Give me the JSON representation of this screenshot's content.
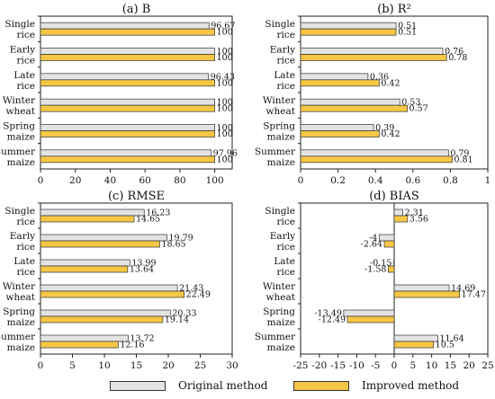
{
  "colors": {
    "original": "#e3e3e3",
    "improved": "#f6c744",
    "stroke": "#333333"
  },
  "legend": {
    "original": "Original method",
    "improved": "Improved method"
  },
  "chart_data": [
    {
      "type": "bar",
      "title": "(a) B",
      "categories": [
        [
          "Single",
          "rice"
        ],
        [
          "Early",
          "rice"
        ],
        [
          "Late",
          "rice"
        ],
        [
          "Winter",
          "wheat"
        ],
        [
          "Spring",
          "maize"
        ],
        [
          "Summer",
          "maize"
        ]
      ],
      "series": [
        {
          "name": "Original method",
          "values": [
            96.67,
            100,
            96.43,
            100,
            100,
            97.96
          ],
          "labels": [
            "96.67",
            "100",
            "96.43",
            "100",
            "100",
            "97.96"
          ]
        },
        {
          "name": "Improved method",
          "values": [
            100,
            100,
            100,
            100,
            100,
            100
          ],
          "labels": [
            "100",
            "100",
            "100",
            "100",
            "100",
            "100"
          ]
        }
      ],
      "xlim": [
        0,
        110
      ],
      "xticks": [
        0,
        20,
        40,
        60,
        80,
        100
      ],
      "grid": false
    },
    {
      "type": "bar",
      "title": "(b) R²",
      "categories": [
        [
          "Single",
          "rice"
        ],
        [
          "Early",
          "rice"
        ],
        [
          "Late",
          "rice"
        ],
        [
          "Winter",
          "wheat"
        ],
        [
          "Spring",
          "maize"
        ],
        [
          "Summer",
          "maize"
        ]
      ],
      "series": [
        {
          "name": "Original method",
          "values": [
            0.51,
            0.76,
            0.36,
            0.53,
            0.39,
            0.79
          ],
          "labels": [
            "0.51",
            "0.76",
            "0.36",
            "0.53",
            "0.39",
            "0.79"
          ]
        },
        {
          "name": "Improved method",
          "values": [
            0.51,
            0.78,
            0.42,
            0.57,
            0.42,
            0.81
          ],
          "labels": [
            "0.51",
            "0.78",
            "0.42",
            "0.57",
            "0.42",
            "0.81"
          ]
        }
      ],
      "xlim": [
        0,
        1
      ],
      "xticks": [
        0,
        0.2,
        0.4,
        0.6,
        0.8,
        1
      ],
      "grid": false
    },
    {
      "type": "bar",
      "title": "(c) RMSE",
      "categories": [
        [
          "Single",
          "rice"
        ],
        [
          "Early",
          "rice"
        ],
        [
          "Late",
          "rice"
        ],
        [
          "Winter",
          "wheat"
        ],
        [
          "Spring",
          "maize"
        ],
        [
          "Summer",
          "maize"
        ]
      ],
      "series": [
        {
          "name": "Original method",
          "values": [
            16.23,
            19.79,
            13.99,
            21.43,
            20.33,
            13.72
          ],
          "labels": [
            "16.23",
            "19.79",
            "13.99",
            "21.43",
            "20.33",
            "13.72"
          ]
        },
        {
          "name": "Improved method",
          "values": [
            14.65,
            18.65,
            13.64,
            22.49,
            19.14,
            12.16
          ],
          "labels": [
            "14.65",
            "18.65",
            "13.64",
            "22.49",
            "19.14",
            "12.16"
          ]
        }
      ],
      "xlim": [
        0,
        30
      ],
      "xticks": [
        0,
        5,
        10,
        15,
        20,
        25,
        30
      ],
      "grid": false
    },
    {
      "type": "bar",
      "title": "(d) BIAS",
      "categories": [
        [
          "Single",
          "rice"
        ],
        [
          "Early",
          "rice"
        ],
        [
          "Late",
          "rice"
        ],
        [
          "Winter",
          "wheat"
        ],
        [
          "Spring",
          "maize"
        ],
        [
          "Summer",
          "maize"
        ]
      ],
      "series": [
        {
          "name": "Original method",
          "values": [
            2.31,
            -4,
            -0.15,
            14.69,
            -13.49,
            11.64
          ],
          "labels": [
            "2.31",
            "-4",
            "-0.15",
            "14.69",
            "-13.49",
            "11.64"
          ]
        },
        {
          "name": "Improved method",
          "values": [
            3.56,
            -2.64,
            -1.58,
            17.47,
            -12.49,
            10.5
          ],
          "labels": [
            "3.56",
            "-2.64",
            "-1.58",
            "17.47",
            "-12.49",
            "10.5"
          ]
        }
      ],
      "xlim": [
        -25,
        25
      ],
      "xticks": [
        -25,
        -20,
        -15,
        -10,
        -5,
        0,
        5,
        10,
        15,
        20,
        25
      ],
      "grid": false
    }
  ]
}
